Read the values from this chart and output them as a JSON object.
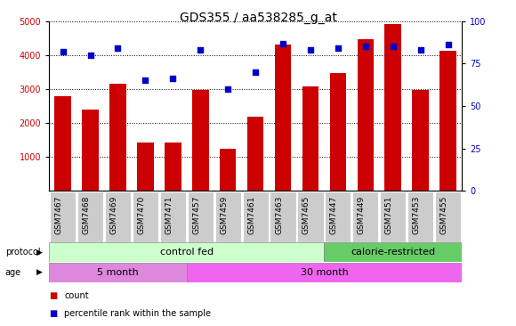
{
  "title": "GDS355 / aa538285_g_at",
  "categories": [
    "GSM7467",
    "GSM7468",
    "GSM7469",
    "GSM7470",
    "GSM7471",
    "GSM7457",
    "GSM7459",
    "GSM7461",
    "GSM7463",
    "GSM7465",
    "GSM7447",
    "GSM7449",
    "GSM7451",
    "GSM7453",
    "GSM7455"
  ],
  "counts": [
    2800,
    2400,
    3150,
    1430,
    1430,
    2970,
    1230,
    2180,
    4300,
    3080,
    3480,
    4480,
    4920,
    2970,
    4120
  ],
  "percentiles": [
    82,
    80,
    84,
    65,
    66,
    83,
    60,
    70,
    87,
    83,
    84,
    85,
    85,
    83,
    86
  ],
  "bar_color": "#cc0000",
  "dot_color": "#0000cc",
  "protocol_control_count": 10,
  "protocol_calorie_count": 5,
  "age_5month_count": 5,
  "age_30month_count": 10,
  "protocol_control_color": "#ccffcc",
  "protocol_calorie_color": "#66cc66",
  "age_5month_color": "#dd88dd",
  "age_30month_color": "#ee66ee",
  "tick_bg_color": "#cccccc",
  "ylim_left": [
    0,
    5000
  ],
  "ylim_right": [
    0,
    100
  ],
  "yticks_left": [
    1000,
    2000,
    3000,
    4000,
    5000
  ],
  "yticks_right": [
    0,
    25,
    50,
    75,
    100
  ],
  "grid_color": "#000000",
  "title_fontsize": 10,
  "label_fontsize": 7,
  "tick_fontsize": 7,
  "legend_fontsize": 7,
  "annotation_fontsize": 8
}
